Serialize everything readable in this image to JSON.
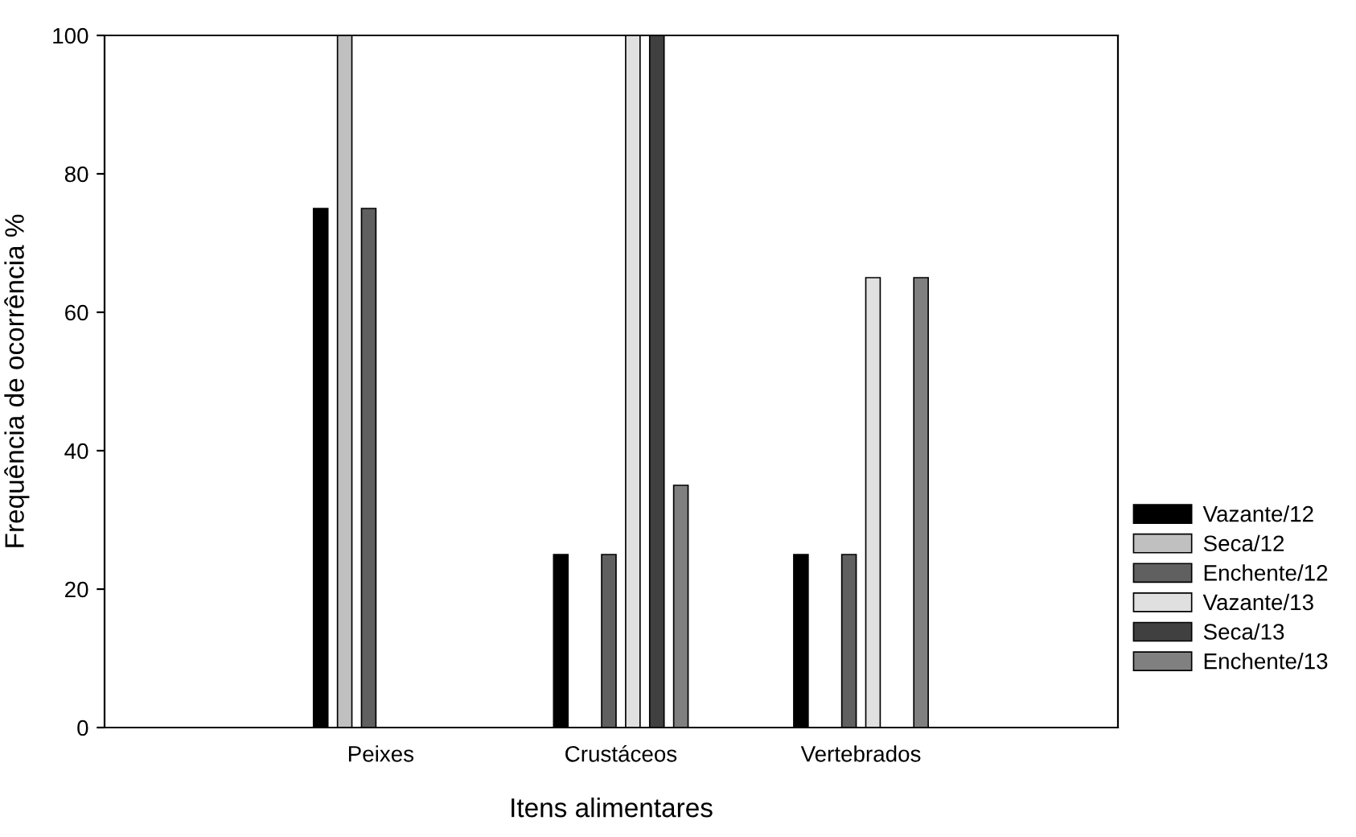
{
  "chart_data": {
    "type": "bar",
    "xlabel": "Itens alimentares",
    "ylabel": "Frequência de ocorrência %",
    "categories": [
      "Peixes",
      "Crustáceos",
      "Vertebrados"
    ],
    "series": [
      {
        "name": "Vazante/12",
        "color": "#000000",
        "values": [
          75,
          25,
          25
        ]
      },
      {
        "name": "Seca/12",
        "color": "#c0c0c0",
        "values": [
          100,
          null,
          null
        ]
      },
      {
        "name": "Enchente/12",
        "color": "#606060",
        "values": [
          75,
          25,
          25
        ]
      },
      {
        "name": "Vazante/13",
        "color": "#e0e0e0",
        "values": [
          null,
          100,
          65
        ]
      },
      {
        "name": "Seca/13",
        "color": "#404040",
        "values": [
          null,
          100,
          null
        ]
      },
      {
        "name": "Enchente/13",
        "color": "#808080",
        "values": [
          null,
          35,
          65
        ]
      }
    ],
    "ylim": [
      0,
      100
    ],
    "yticks": [
      0,
      20,
      40,
      60,
      80,
      100
    ],
    "grid": false,
    "legend": "right"
  }
}
